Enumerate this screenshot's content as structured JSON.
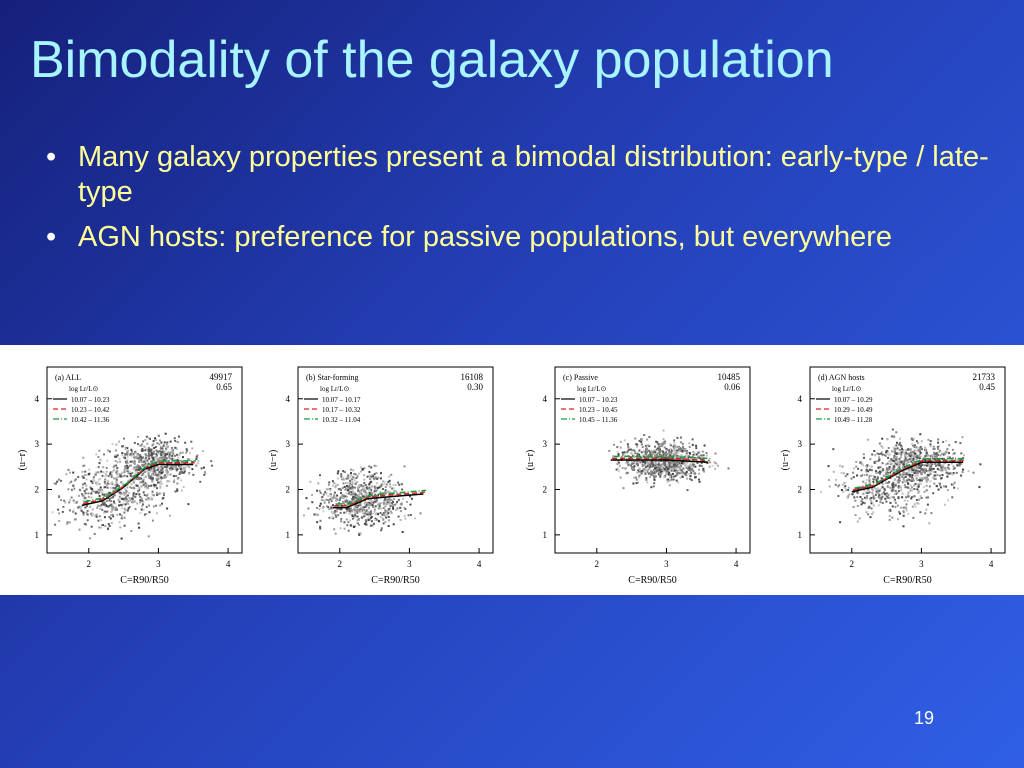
{
  "title": "Bimodality of the galaxy population",
  "bullets": [
    "Many galaxy properties present a bimodal distribution: early-type / late-type",
    "AGN hosts: preference for passive populations, but everywhere"
  ],
  "figure": {
    "x_label": "C=R90/R50",
    "y_label": "(u−r)",
    "legend_title": "log Lr/L⊙",
    "xlim": [
      1.4,
      4.2
    ],
    "xticks": [
      2,
      3,
      4
    ],
    "ylim": [
      0.6,
      4.7
    ],
    "yticks": [
      1,
      2,
      3,
      4
    ],
    "panels": [
      {
        "label": "(a) ALL",
        "count": "49917",
        "fraction": "0.65",
        "legend": [
          "10.07 – 10.23",
          "10.23 – 10.42",
          "10.42 – 11.36"
        ]
      },
      {
        "label": "(b) Star-forming",
        "count": "16108",
        "fraction": "0.30",
        "legend": [
          "10.07 – 10.17",
          "10.17 – 10.32",
          "10.32 – 11.04"
        ]
      },
      {
        "label": "(c) Passive",
        "count": "10485",
        "fraction": "0.06",
        "legend": [
          "10.07 – 10.23",
          "10.23 – 10.45",
          "10.45 – 11.36"
        ]
      },
      {
        "label": "(d) AGN hosts",
        "count": "21733",
        "fraction": "0.45",
        "legend": [
          "10.07 – 10.29",
          "10.29 – 10.49",
          "10.49 – 11.28"
        ]
      }
    ]
  },
  "page_number": "19"
}
